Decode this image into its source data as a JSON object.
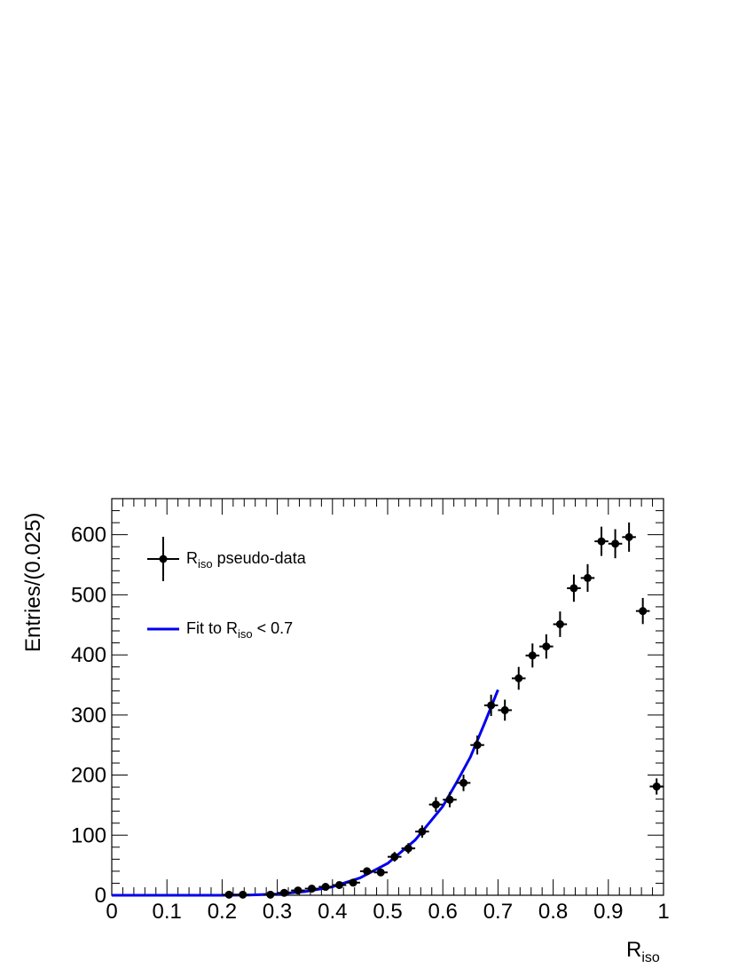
{
  "chart_data": {
    "type": "scatter",
    "xlabel": "R",
    "xlabel_sub": "iso",
    "ylabel": "Entries/(0.025)",
    "xlim": [
      0,
      1
    ],
    "ylim": [
      0,
      660
    ],
    "x_ticks": [
      {
        "v": 0,
        "label": "0"
      },
      {
        "v": 0.1,
        "label": "0.1"
      },
      {
        "v": 0.2,
        "label": "0.2"
      },
      {
        "v": 0.3,
        "label": "0.3"
      },
      {
        "v": 0.4,
        "label": "0.4"
      },
      {
        "v": 0.5,
        "label": "0.5"
      },
      {
        "v": 0.6,
        "label": "0.6"
      },
      {
        "v": 0.7,
        "label": "0.7"
      },
      {
        "v": 0.8,
        "label": "0.8"
      },
      {
        "v": 0.9,
        "label": "0.9"
      },
      {
        "v": 1,
        "label": "1"
      }
    ],
    "y_ticks": [
      {
        "v": 0,
        "label": "0"
      },
      {
        "v": 100,
        "label": "100"
      },
      {
        "v": 200,
        "label": "200"
      },
      {
        "v": 300,
        "label": "300"
      },
      {
        "v": 400,
        "label": "400"
      },
      {
        "v": 500,
        "label": "500"
      },
      {
        "v": 600,
        "label": "600"
      }
    ],
    "bin_width": 0.025,
    "series": [
      {
        "name": "pseudo-data",
        "name_prefix": "R",
        "name_sub": "iso",
        "color": "#000000",
        "points": [
          {
            "x": 0.2125,
            "y": 1,
            "err": 1
          },
          {
            "x": 0.2375,
            "y": 1,
            "err": 1
          },
          {
            "x": 0.2875,
            "y": 1,
            "err": 1
          },
          {
            "x": 0.3125,
            "y": 4,
            "err": 2
          },
          {
            "x": 0.3375,
            "y": 8,
            "err": 2.8
          },
          {
            "x": 0.3625,
            "y": 11,
            "err": 3.3
          },
          {
            "x": 0.3875,
            "y": 14,
            "err": 3.7
          },
          {
            "x": 0.4125,
            "y": 17,
            "err": 4.1
          },
          {
            "x": 0.4375,
            "y": 21,
            "err": 4.6
          },
          {
            "x": 0.4625,
            "y": 40,
            "err": 6.3
          },
          {
            "x": 0.4875,
            "y": 38,
            "err": 6.2
          },
          {
            "x": 0.5125,
            "y": 64,
            "err": 8
          },
          {
            "x": 0.5375,
            "y": 78,
            "err": 8.8
          },
          {
            "x": 0.5625,
            "y": 106,
            "err": 10.3
          },
          {
            "x": 0.5875,
            "y": 151,
            "err": 12.3
          },
          {
            "x": 0.6125,
            "y": 159,
            "err": 12.6
          },
          {
            "x": 0.6375,
            "y": 187,
            "err": 13.7
          },
          {
            "x": 0.6625,
            "y": 250,
            "err": 15.8
          },
          {
            "x": 0.6875,
            "y": 316,
            "err": 17.8
          },
          {
            "x": 0.7125,
            "y": 308,
            "err": 17.5
          },
          {
            "x": 0.7375,
            "y": 361,
            "err": 19
          },
          {
            "x": 0.7625,
            "y": 399,
            "err": 20
          },
          {
            "x": 0.7875,
            "y": 414,
            "err": 20.3
          },
          {
            "x": 0.8125,
            "y": 451,
            "err": 21.2
          },
          {
            "x": 0.8375,
            "y": 511,
            "err": 22.6
          },
          {
            "x": 0.8625,
            "y": 528,
            "err": 23
          },
          {
            "x": 0.8875,
            "y": 589,
            "err": 24.3
          },
          {
            "x": 0.9125,
            "y": 585,
            "err": 24.2
          },
          {
            "x": 0.9375,
            "y": 596,
            "err": 24.4
          },
          {
            "x": 0.9625,
            "y": 473,
            "err": 21.7
          },
          {
            "x": 0.9875,
            "y": 181,
            "err": 13.5
          }
        ]
      },
      {
        "name": "Fit to",
        "name_prefix": "Fit to R",
        "name_sub": "iso",
        "name_suffix": " < 0.7",
        "color": "#0000ee",
        "type": "line",
        "x": [
          0,
          0.1,
          0.2,
          0.25,
          0.3,
          0.35,
          0.4,
          0.45,
          0.5,
          0.55,
          0.6,
          0.625,
          0.65,
          0.675,
          0.7
        ],
        "y": [
          0,
          0,
          0,
          0.5,
          2,
          6,
          14,
          29,
          53,
          92,
          148,
          188,
          230,
          285,
          342
        ]
      }
    ]
  }
}
